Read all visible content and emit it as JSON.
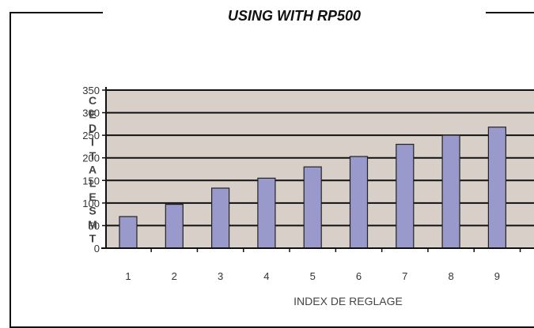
{
  "chart_data": {
    "type": "bar",
    "title": "USING WITH RP500",
    "xlabel": "INDEX DE REGLAGE",
    "ylabel": "CEDITALE SMT",
    "categories": [
      "1",
      "2",
      "3",
      "4",
      "5",
      "6",
      "7",
      "8",
      "9"
    ],
    "values": [
      70,
      97,
      133,
      155,
      180,
      203,
      230,
      250,
      268
    ],
    "ylim": [
      0,
      350
    ],
    "yticks": [
      0,
      50,
      100,
      150,
      200,
      250,
      300,
      350
    ],
    "grid": true,
    "legend": "none"
  },
  "colors": {
    "bar_fill": "#9999cc",
    "bar_stroke": "#222222",
    "plot_background": "#d8d0c8",
    "gridline": "#111111"
  }
}
